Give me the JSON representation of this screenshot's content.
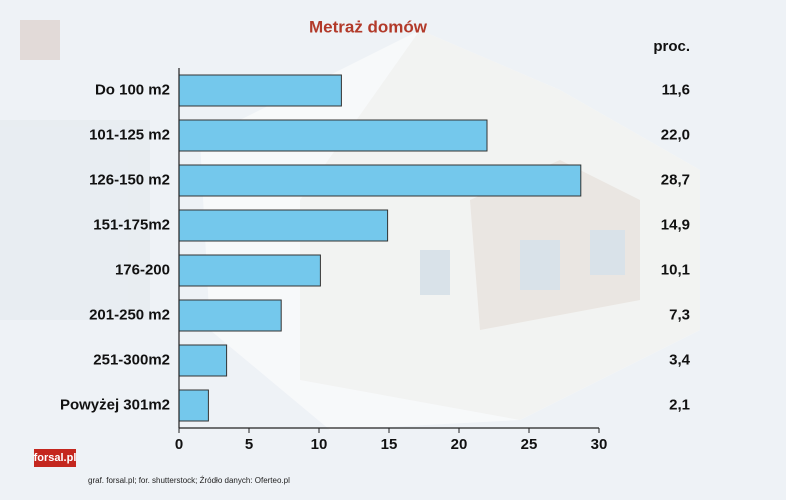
{
  "chart_data": {
    "type": "barh",
    "title": "Metraż domów",
    "categories": [
      "Do 100 m2",
      "101-125 m2",
      "126-150 m2",
      "151-175m2",
      "176-200",
      "201-250 m2",
      "251-300m2",
      "Powyżej 301m2"
    ],
    "values": [
      11.6,
      22.0,
      28.7,
      14.9,
      10.1,
      7.3,
      3.4,
      2.1
    ],
    "value_labels": [
      "11,6",
      "22,0",
      "28,7",
      "14,9",
      "10,1",
      "7,3",
      "3,4",
      "2,1"
    ],
    "value_labels_title": "proc.",
    "color": "#74c8ec",
    "xlim": [
      0,
      30
    ],
    "xticks": [
      0,
      5,
      10,
      15,
      20,
      25,
      30
    ],
    "logo": "forsal.pl",
    "source": "graf. forsal.pl; for. shutterstock;  Źródło danych:  Oferteo.pl"
  }
}
